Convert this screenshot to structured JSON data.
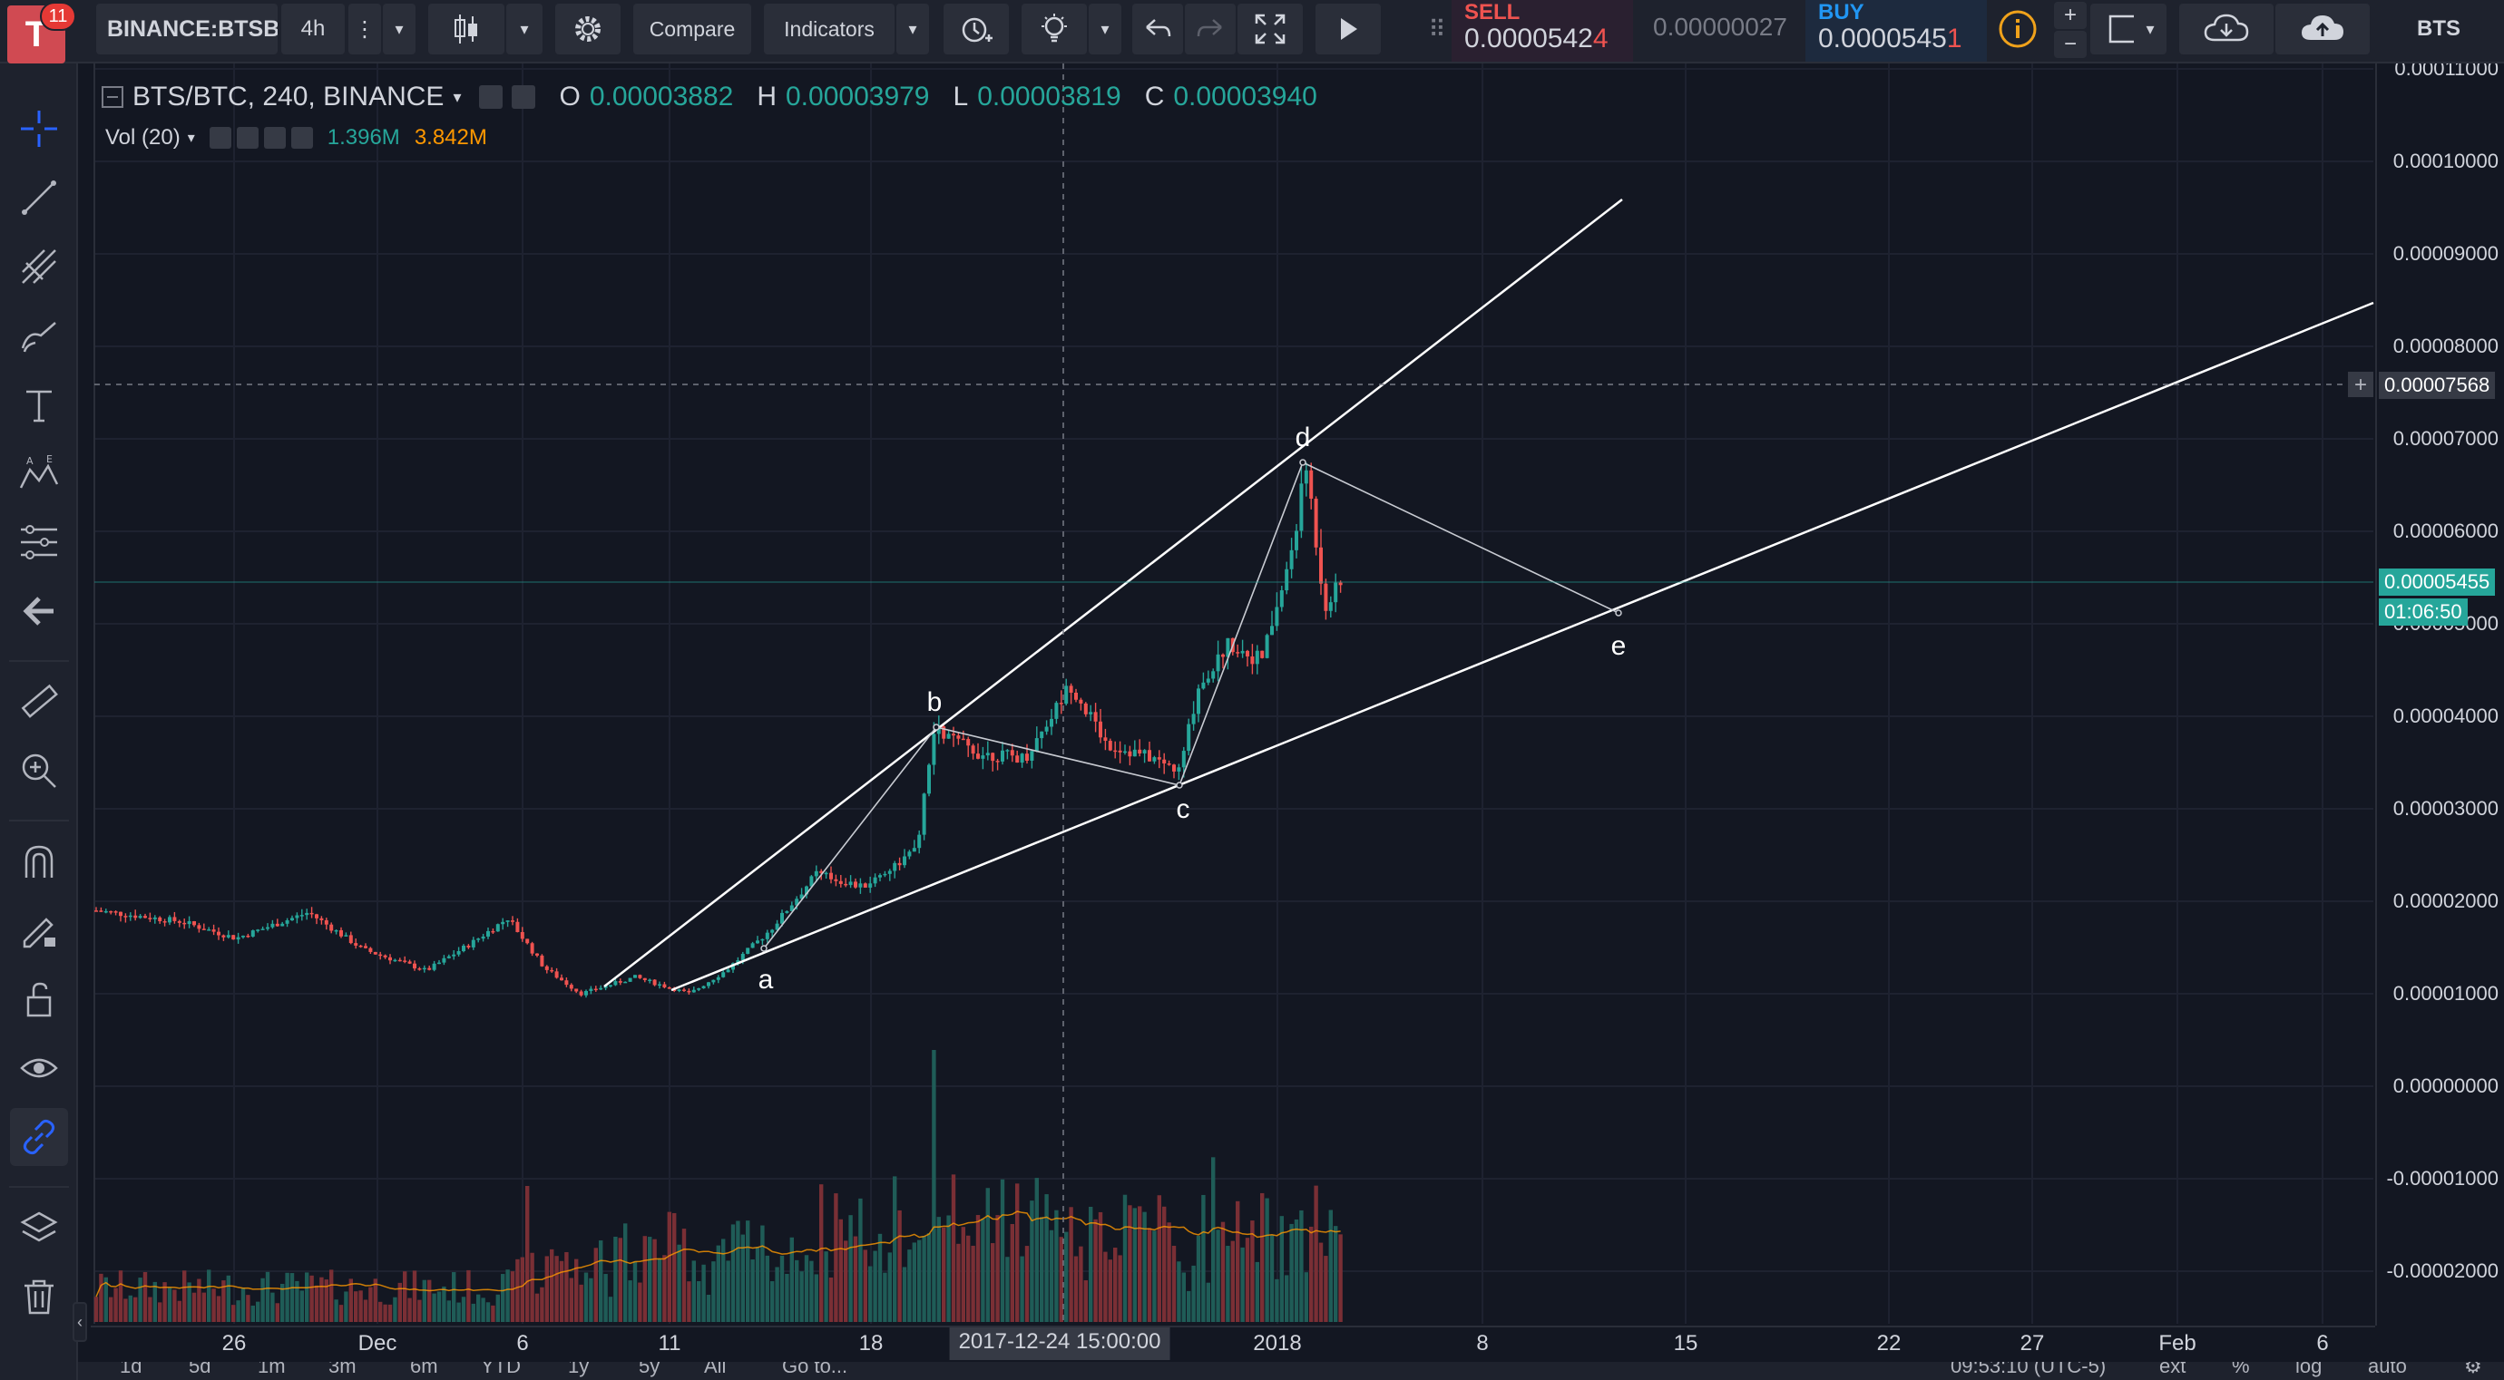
{
  "toolbar": {
    "notification_count": "11",
    "symbol": "BINANCE:BTSBTC",
    "interval": "4h",
    "compare_label": "Compare",
    "indicators_label": "Indicators",
    "sell_label": "SELL",
    "sell_price_main": "0.0000542",
    "sell_price_last": "4",
    "spread": "0.00000027",
    "buy_label": "BUY",
    "buy_price_main": "0.0000545",
    "buy_price_last": "1",
    "plus_label": "+",
    "minus_label": "−",
    "account_symbol": "BTS"
  },
  "icons": {
    "menu": "vertical-dots-icon",
    "candles": "candlestick-icon",
    "settings": "gear-icon",
    "alert": "alarm-plus-icon",
    "ideas": "lightbulb-icon",
    "undo": "undo-icon",
    "redo": "redo-icon",
    "fullscreen": "fullscreen-icon",
    "replay": "play-icon",
    "info": "info-icon",
    "layout": "square-layout-icon",
    "load": "cloud-download-icon",
    "save": "cloud-upload-icon"
  },
  "legend": {
    "title": "BTS/BTC, 240, BINANCE",
    "o_label": "O",
    "o_value": "0.00003882",
    "h_label": "H",
    "h_value": "0.00003979",
    "l_label": "L",
    "l_value": "0.00003819",
    "c_label": "C",
    "c_value": "0.00003940",
    "volume_title": "Vol (20)",
    "volume_value": "1.396M",
    "volume_ma": "3.842M"
  },
  "price_axis": {
    "labels": [
      "0.00011000",
      "0.00010000",
      "0.00009000",
      "0.00008000",
      "0.00007000",
      "0.00006000",
      "0.00005000",
      "0.00004000",
      "0.00003000",
      "0.00002000",
      "0.00001000",
      "0.00000000",
      "-0.00001000",
      "-0.00002000"
    ],
    "crosshair_price": "0.00007568",
    "last_price": "0.00005455",
    "countdown": "01:06:50"
  },
  "time_axis": {
    "labels": [
      "26",
      "Dec",
      "6",
      "11",
      "18",
      "2018",
      "8",
      "15",
      "22",
      "27",
      "Feb",
      "6"
    ],
    "crosshair_date": "2017-12-24 15:00:00"
  },
  "wave_labels": [
    "a",
    "b",
    "c",
    "d",
    "e"
  ],
  "bottom_bar": {
    "ranges": [
      "1d",
      "5d",
      "1m",
      "3m",
      "6m",
      "YTD",
      "1y",
      "5y",
      "All"
    ],
    "goto": "Go to...",
    "clock": "09:53:10 (UTC-5)",
    "ext": "ext",
    "percent": "%",
    "log": "log",
    "auto": "auto"
  },
  "colors": {
    "background": "#131722",
    "panel": "#1e222d",
    "up": "#26a69a",
    "down": "#ef5350",
    "sell": "#ef5350",
    "buy": "#2196f3",
    "accent": "#2962ff",
    "ma_line": "#ff9800"
  }
}
